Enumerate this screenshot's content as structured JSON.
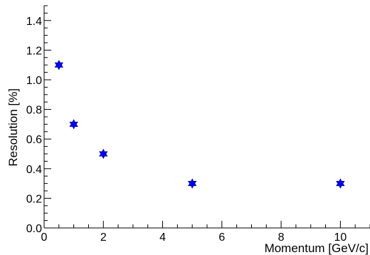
{
  "chart_data": {
    "type": "scatter",
    "title": "",
    "xlabel": "Momentum [GeV/c]",
    "ylabel": "Resolution [%]",
    "xlim": [
      0,
      11
    ],
    "ylim": [
      0,
      1.5
    ],
    "x_ticks": [
      "0",
      "2",
      "4",
      "6",
      "8",
      "10"
    ],
    "y_ticks": [
      "0.0",
      "0.2",
      "0.4",
      "0.6",
      "0.8",
      "1.0",
      "1.2",
      "1.4"
    ],
    "grid": false,
    "series": [
      {
        "marker": "star",
        "color": "#0000ff",
        "points": [
          {
            "x": 0.5,
            "y": 1.1
          },
          {
            "x": 1,
            "y": 0.7
          },
          {
            "x": 2,
            "y": 0.5
          },
          {
            "x": 5,
            "y": 0.3
          },
          {
            "x": 10,
            "y": 0.3
          }
        ]
      }
    ]
  }
}
